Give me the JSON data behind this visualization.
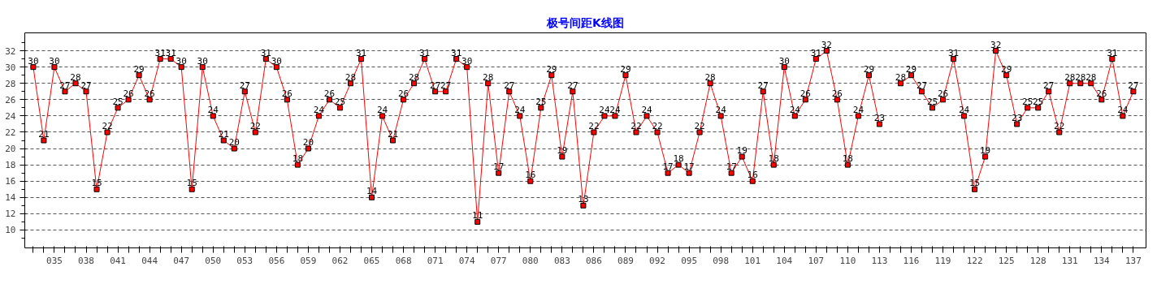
{
  "chart_data": {
    "type": "line",
    "title": "极号间距K线图",
    "categories": [
      null,
      null,
      "035",
      null,
      null,
      "038",
      null,
      null,
      "041",
      null,
      null,
      "044",
      null,
      null,
      "047",
      null,
      null,
      "050",
      null,
      null,
      "053",
      null,
      null,
      "056",
      null,
      null,
      "059",
      null,
      null,
      "062",
      null,
      null,
      "065",
      null,
      null,
      "068",
      null,
      null,
      "071",
      null,
      null,
      "074",
      null,
      null,
      "077",
      null,
      null,
      "080",
      null,
      null,
      "083",
      null,
      null,
      "086",
      null,
      null,
      "089",
      null,
      null,
      "092",
      null,
      null,
      "095",
      null,
      null,
      "098",
      null,
      null,
      "101",
      null,
      null,
      "104",
      null,
      null,
      "107",
      null,
      null,
      "110",
      null,
      null,
      "113",
      null,
      null,
      "116",
      null,
      null,
      "119",
      null,
      null,
      "122",
      null,
      null,
      "125",
      null,
      null,
      "128",
      null,
      null,
      "131",
      null,
      null,
      "134",
      null,
      null,
      "137"
    ],
    "series": [
      {
        "color": "#ff0000",
        "values": [
          30,
          21,
          30,
          27,
          28,
          27,
          15,
          22,
          25,
          26,
          29,
          26,
          31,
          31,
          30,
          15,
          30,
          24,
          21,
          20,
          27,
          22,
          31,
          30,
          26,
          18,
          20,
          24,
          26,
          25,
          28,
          31,
          14,
          24,
          21,
          26,
          28,
          31,
          27,
          27,
          31,
          30,
          11,
          28,
          17,
          27,
          24,
          16,
          25,
          29,
          19,
          27,
          13,
          22,
          24,
          24,
          29,
          22,
          24,
          22,
          17,
          18,
          17,
          22,
          28,
          24,
          17,
          19,
          16,
          27,
          18,
          30,
          24,
          26,
          31,
          32,
          26,
          18,
          24,
          29,
          23,
          null,
          28,
          29,
          27,
          25,
          26,
          31,
          24,
          15,
          19,
          32,
          29,
          23,
          25,
          25,
          27,
          22,
          28,
          28,
          28,
          26,
          31,
          24,
          27
        ]
      }
    ],
    "ylim": [
      7.8,
      34.2
    ],
    "yticks": [
      10,
      12,
      14,
      16,
      18,
      20,
      22,
      24,
      26,
      28,
      30,
      32
    ],
    "grid": "y",
    "marker": "square",
    "line_style": "solid",
    "data_labels": true
  }
}
